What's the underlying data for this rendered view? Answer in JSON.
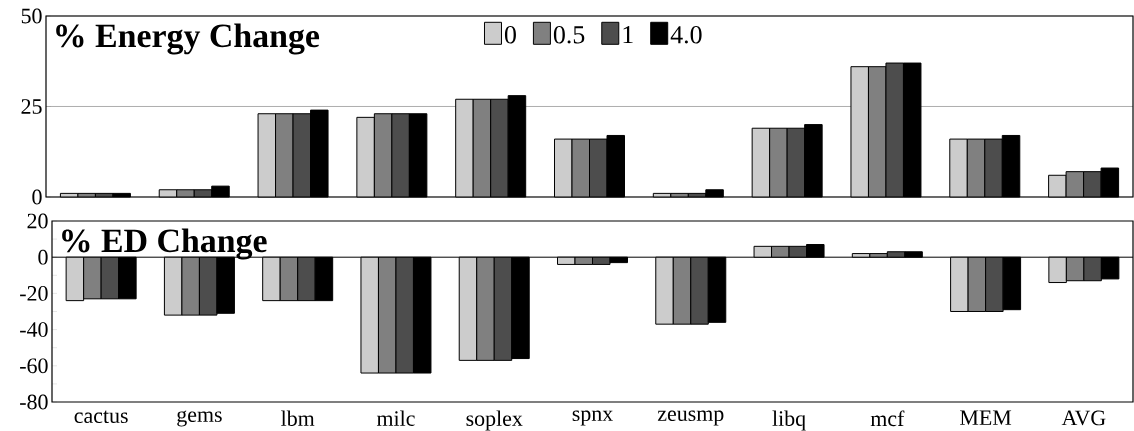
{
  "chart_data": [
    {
      "type": "bar",
      "title": "% Energy Change",
      "series": [
        {
          "name": "0",
          "color": "#cccccc",
          "values": [
            1,
            2,
            23,
            22,
            27,
            16,
            1,
            19,
            36,
            16,
            6
          ]
        },
        {
          "name": "0.5",
          "color": "#808080",
          "values": [
            1,
            2,
            23,
            23,
            27,
            16,
            1,
            19,
            36,
            16,
            7
          ]
        },
        {
          "name": "1",
          "color": "#4d4d4d",
          "values": [
            1,
            2,
            23,
            23,
            27,
            16,
            1,
            19,
            37,
            16,
            7
          ]
        },
        {
          "name": "4.0",
          "color": "#000000",
          "values": [
            1,
            3,
            24,
            23,
            28,
            17,
            2,
            20,
            37,
            17,
            8
          ]
        }
      ],
      "ylim": [
        0,
        50
      ],
      "yticks": [
        0,
        25,
        50
      ],
      "grid": "y",
      "legend": "top",
      "tick_labels": "y"
    },
    {
      "type": "bar",
      "title": "% ED Change",
      "categories": [
        "cactus",
        "gems",
        "lbm",
        "milc",
        "soplex",
        "spnx",
        "zeusmp",
        "libq",
        "mcf",
        "MEM",
        "AVG"
      ],
      "series": [
        {
          "color": "#cccccc",
          "values": [
            -24,
            -32,
            -24,
            -64,
            -57,
            -4,
            -37,
            6,
            2,
            -30,
            -14
          ]
        },
        {
          "color": "#808080",
          "values": [
            -23,
            -32,
            -24,
            -64,
            -57,
            -4,
            -37,
            6,
            2,
            -30,
            -13
          ]
        },
        {
          "color": "#4d4d4d",
          "values": [
            -23,
            -32,
            -24,
            -64,
            -57,
            -4,
            -37,
            6,
            3,
            -30,
            -13
          ]
        },
        {
          "color": "#000000",
          "values": [
            -23,
            -31,
            -24,
            -64,
            -56,
            -3,
            -36,
            7,
            3,
            -29,
            -12
          ]
        }
      ],
      "ylim": [
        -80,
        20
      ],
      "yticks": [
        20,
        {
          "value": 10,
          "label": null
        },
        0,
        {
          "value": -10,
          "label": null
        },
        -20,
        {
          "value": -30,
          "label": null
        },
        -40,
        {
          "value": -50,
          "label": null
        },
        -60,
        {
          "value": -70,
          "label": null
        },
        -80
      ]
    }
  ]
}
